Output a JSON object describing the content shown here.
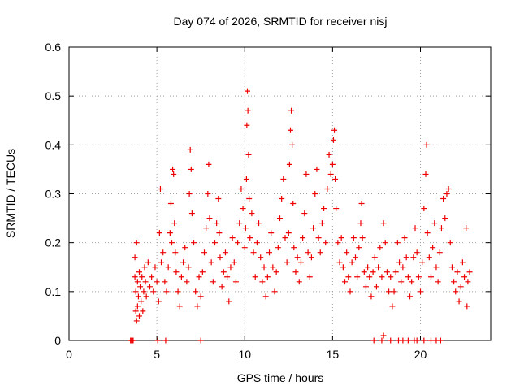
{
  "chart_data": {
    "type": "scatter",
    "title": "Day 074 of 2026, SRMTID for receiver nisj",
    "xlabel": "GPS time / hours",
    "ylabel": "SRMTID / TECUs",
    "xlim": [
      0,
      24
    ],
    "ylim": [
      0,
      0.6
    ],
    "x_ticks": [
      0,
      5,
      10,
      15,
      20
    ],
    "y_ticks": [
      0,
      0.1,
      0.2,
      0.3,
      0.4,
      0.5,
      0.6
    ],
    "x_tick_labels": [
      "0",
      "5",
      "10",
      "15",
      "20"
    ],
    "y_tick_labels": [
      "0",
      "0.1",
      "0.2",
      "0.3",
      "0.4",
      "0.5",
      "0.6"
    ],
    "grid": true,
    "marker": "+",
    "color": "#ee0000",
    "series": [
      {
        "name": "SRMTID",
        "points": [
          [
            3.5,
            0.0
          ],
          [
            3.55,
            0.0
          ],
          [
            3.6,
            0.0
          ],
          [
            3.65,
            0.0
          ],
          [
            5.05,
            0.0
          ],
          [
            5.5,
            0.0
          ],
          [
            7.5,
            0.0
          ],
          [
            17.35,
            0.0
          ],
          [
            17.8,
            0.0
          ],
          [
            18.3,
            0.0
          ],
          [
            18.75,
            0.0
          ],
          [
            19.0,
            0.0
          ],
          [
            19.3,
            0.0
          ],
          [
            19.65,
            0.0
          ],
          [
            19.8,
            0.0
          ],
          [
            20.2,
            0.0
          ],
          [
            20.6,
            0.0
          ],
          [
            20.9,
            0.0
          ],
          [
            21.15,
            0.0
          ],
          [
            17.9,
            0.01
          ],
          [
            3.75,
            0.13
          ],
          [
            3.75,
            0.17
          ],
          [
            3.8,
            0.06
          ],
          [
            3.8,
            0.1
          ],
          [
            3.85,
            0.04
          ],
          [
            3.85,
            0.2
          ],
          [
            3.9,
            0.07
          ],
          [
            3.9,
            0.12
          ],
          [
            3.95,
            0.09
          ],
          [
            4.0,
            0.05
          ],
          [
            4.0,
            0.14
          ],
          [
            4.05,
            0.11
          ],
          [
            4.1,
            0.08
          ],
          [
            4.15,
            0.13
          ],
          [
            4.2,
            0.06
          ],
          [
            4.25,
            0.1
          ],
          [
            4.3,
            0.15
          ],
          [
            4.35,
            0.12
          ],
          [
            4.4,
            0.09
          ],
          [
            4.5,
            0.16
          ],
          [
            4.6,
            0.11
          ],
          [
            4.7,
            0.13
          ],
          [
            4.8,
            0.1
          ],
          [
            4.9,
            0.15
          ],
          [
            5.0,
            0.12
          ],
          [
            5.1,
            0.08
          ],
          [
            5.15,
            0.22
          ],
          [
            5.2,
            0.31
          ],
          [
            5.25,
            0.16
          ],
          [
            5.35,
            0.18
          ],
          [
            5.45,
            0.12
          ],
          [
            5.55,
            0.1
          ],
          [
            5.65,
            0.15
          ],
          [
            5.75,
            0.22
          ],
          [
            5.8,
            0.28
          ],
          [
            5.85,
            0.2
          ],
          [
            5.9,
            0.35
          ],
          [
            5.95,
            0.34
          ],
          [
            6.0,
            0.24
          ],
          [
            6.05,
            0.18
          ],
          [
            6.1,
            0.14
          ],
          [
            6.2,
            0.1
          ],
          [
            6.3,
            0.07
          ],
          [
            6.4,
            0.13
          ],
          [
            6.5,
            0.16
          ],
          [
            6.6,
            0.19
          ],
          [
            6.7,
            0.12
          ],
          [
            6.8,
            0.15
          ],
          [
            6.85,
            0.3
          ],
          [
            6.9,
            0.39
          ],
          [
            6.95,
            0.35
          ],
          [
            7.0,
            0.26
          ],
          [
            7.1,
            0.2
          ],
          [
            7.2,
            0.1
          ],
          [
            7.3,
            0.07
          ],
          [
            7.4,
            0.13
          ],
          [
            7.5,
            0.09
          ],
          [
            7.6,
            0.14
          ],
          [
            7.7,
            0.18
          ],
          [
            7.8,
            0.23
          ],
          [
            7.9,
            0.3
          ],
          [
            7.95,
            0.36
          ],
          [
            8.0,
            0.25
          ],
          [
            8.1,
            0.16
          ],
          [
            8.2,
            0.12
          ],
          [
            8.3,
            0.2
          ],
          [
            8.4,
            0.24
          ],
          [
            8.5,
            0.29
          ],
          [
            8.55,
            0.22
          ],
          [
            8.6,
            0.17
          ],
          [
            8.7,
            0.11
          ],
          [
            8.8,
            0.14
          ],
          [
            8.9,
            0.18
          ],
          [
            9.0,
            0.13
          ],
          [
            9.1,
            0.08
          ],
          [
            9.2,
            0.15
          ],
          [
            9.3,
            0.21
          ],
          [
            9.4,
            0.16
          ],
          [
            9.5,
            0.12
          ],
          [
            9.6,
            0.2
          ],
          [
            9.7,
            0.24
          ],
          [
            9.8,
            0.31
          ],
          [
            9.9,
            0.27
          ],
          [
            10.0,
            0.19
          ],
          [
            10.05,
            0.23
          ],
          [
            10.1,
            0.33
          ],
          [
            10.12,
            0.44
          ],
          [
            10.15,
            0.51
          ],
          [
            10.18,
            0.47
          ],
          [
            10.22,
            0.38
          ],
          [
            10.25,
            0.29
          ],
          [
            10.3,
            0.21
          ],
          [
            10.4,
            0.26
          ],
          [
            10.5,
            0.18
          ],
          [
            10.6,
            0.13
          ],
          [
            10.7,
            0.2
          ],
          [
            10.8,
            0.24
          ],
          [
            10.9,
            0.17
          ],
          [
            11.0,
            0.12
          ],
          [
            11.1,
            0.15
          ],
          [
            11.2,
            0.09
          ],
          [
            11.3,
            0.13
          ],
          [
            11.4,
            0.18
          ],
          [
            11.5,
            0.22
          ],
          [
            11.6,
            0.15
          ],
          [
            11.7,
            0.1
          ],
          [
            11.8,
            0.14
          ],
          [
            11.9,
            0.19
          ],
          [
            12.0,
            0.25
          ],
          [
            12.1,
            0.29
          ],
          [
            12.2,
            0.33
          ],
          [
            12.3,
            0.21
          ],
          [
            12.4,
            0.16
          ],
          [
            12.5,
            0.22
          ],
          [
            12.55,
            0.36
          ],
          [
            12.6,
            0.43
          ],
          [
            12.65,
            0.47
          ],
          [
            12.7,
            0.4
          ],
          [
            12.75,
            0.28
          ],
          [
            12.8,
            0.19
          ],
          [
            12.9,
            0.14
          ],
          [
            13.0,
            0.17
          ],
          [
            13.1,
            0.12
          ],
          [
            13.2,
            0.16
          ],
          [
            13.3,
            0.21
          ],
          [
            13.4,
            0.26
          ],
          [
            13.5,
            0.34
          ],
          [
            13.6,
            0.18
          ],
          [
            13.7,
            0.13
          ],
          [
            13.8,
            0.17
          ],
          [
            13.9,
            0.23
          ],
          [
            14.0,
            0.3
          ],
          [
            14.1,
            0.35
          ],
          [
            14.2,
            0.21
          ],
          [
            14.3,
            0.18
          ],
          [
            14.4,
            0.24
          ],
          [
            14.5,
            0.27
          ],
          [
            14.6,
            0.2
          ],
          [
            14.7,
            0.31
          ],
          [
            14.8,
            0.38
          ],
          [
            14.9,
            0.34
          ],
          [
            15.0,
            0.36
          ],
          [
            15.05,
            0.41
          ],
          [
            15.1,
            0.43
          ],
          [
            15.15,
            0.33
          ],
          [
            15.2,
            0.27
          ],
          [
            15.3,
            0.2
          ],
          [
            15.4,
            0.16
          ],
          [
            15.5,
            0.21
          ],
          [
            15.6,
            0.15
          ],
          [
            15.7,
            0.12
          ],
          [
            15.8,
            0.18
          ],
          [
            15.9,
            0.13
          ],
          [
            16.0,
            0.1
          ],
          [
            16.1,
            0.16
          ],
          [
            16.2,
            0.21
          ],
          [
            16.3,
            0.17
          ],
          [
            16.4,
            0.13
          ],
          [
            16.5,
            0.19
          ],
          [
            16.6,
            0.24
          ],
          [
            16.65,
            0.28
          ],
          [
            16.7,
            0.21
          ],
          [
            16.8,
            0.14
          ],
          [
            16.9,
            0.11
          ],
          [
            17.0,
            0.15
          ],
          [
            17.1,
            0.13
          ],
          [
            17.2,
            0.09
          ],
          [
            17.3,
            0.14
          ],
          [
            17.4,
            0.17
          ],
          [
            17.5,
            0.11
          ],
          [
            17.6,
            0.15
          ],
          [
            17.7,
            0.19
          ],
          [
            17.8,
            0.13
          ],
          [
            17.9,
            0.24
          ],
          [
            18.0,
            0.2
          ],
          [
            18.1,
            0.14
          ],
          [
            18.2,
            0.1
          ],
          [
            18.3,
            0.13
          ],
          [
            18.4,
            0.07
          ],
          [
            18.5,
            0.1
          ],
          [
            18.6,
            0.14
          ],
          [
            18.7,
            0.2
          ],
          [
            18.8,
            0.16
          ],
          [
            18.9,
            0.12
          ],
          [
            19.0,
            0.15
          ],
          [
            19.1,
            0.21
          ],
          [
            19.2,
            0.17
          ],
          [
            19.3,
            0.13
          ],
          [
            19.4,
            0.09
          ],
          [
            19.5,
            0.12
          ],
          [
            19.6,
            0.17
          ],
          [
            19.7,
            0.23
          ],
          [
            19.8,
            0.18
          ],
          [
            19.9,
            0.13
          ],
          [
            20.0,
            0.1
          ],
          [
            20.1,
            0.16
          ],
          [
            20.2,
            0.27
          ],
          [
            20.3,
            0.34
          ],
          [
            20.35,
            0.4
          ],
          [
            20.4,
            0.22
          ],
          [
            20.5,
            0.17
          ],
          [
            20.6,
            0.13
          ],
          [
            20.7,
            0.19
          ],
          [
            20.8,
            0.24
          ],
          [
            20.9,
            0.15
          ],
          [
            21.0,
            0.12
          ],
          [
            21.1,
            0.18
          ],
          [
            21.2,
            0.23
          ],
          [
            21.3,
            0.29
          ],
          [
            21.4,
            0.25
          ],
          [
            21.5,
            0.3
          ],
          [
            21.6,
            0.31
          ],
          [
            21.7,
            0.2
          ],
          [
            21.8,
            0.15
          ],
          [
            21.9,
            0.12
          ],
          [
            22.0,
            0.1
          ],
          [
            22.1,
            0.14
          ],
          [
            22.2,
            0.08
          ],
          [
            22.3,
            0.11
          ],
          [
            22.4,
            0.16
          ],
          [
            22.5,
            0.13
          ],
          [
            22.6,
            0.23
          ],
          [
            22.65,
            0.07
          ],
          [
            22.7,
            0.12
          ],
          [
            22.8,
            0.14
          ]
        ]
      }
    ]
  }
}
